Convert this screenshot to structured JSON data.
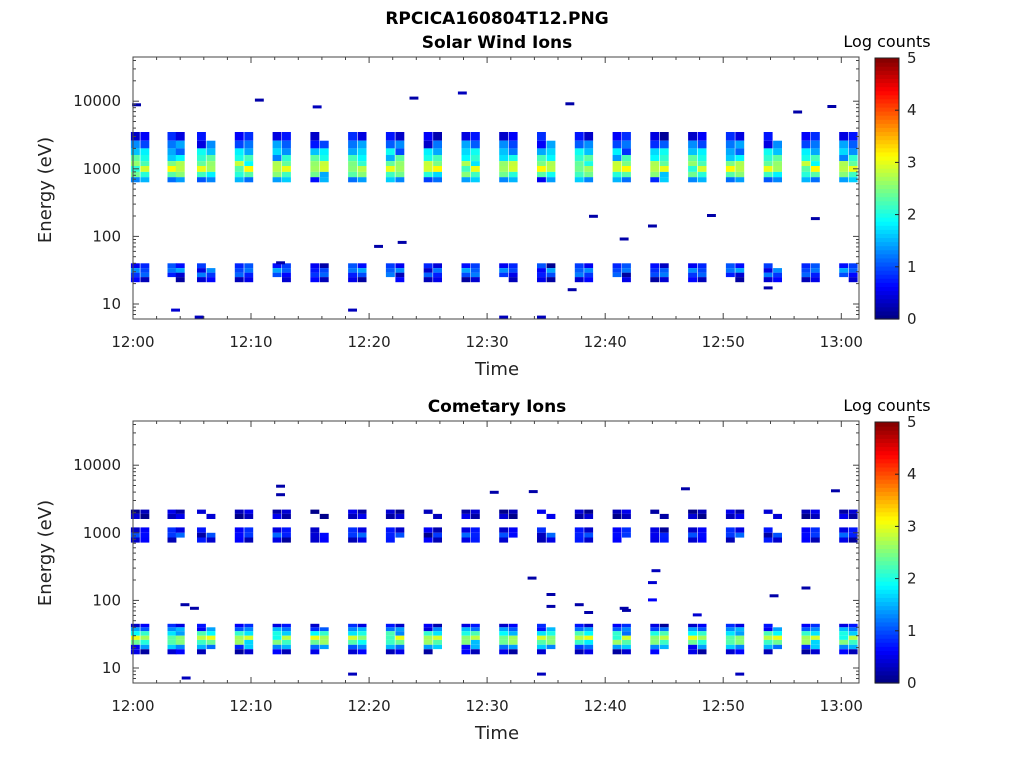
{
  "figure": {
    "title": "RPCICA160804T12.PNG"
  },
  "colormap": {
    "name": "jet",
    "stops": [
      "#00007f",
      "#0000ff",
      "#007fff",
      "#00ffff",
      "#7fff7f",
      "#ffff00",
      "#ff7f00",
      "#ff0000",
      "#7f0000"
    ]
  },
  "chart_data": [
    {
      "type": "heatmap",
      "title": "Solar Wind Ions",
      "xlabel": "Time",
      "ylabel": "Energy (eV)",
      "yscale": "log",
      "xlim_minutes": [
        0,
        61.5
      ],
      "ylim": [
        6,
        45000
      ],
      "xticks": [
        "12:00",
        "12:10",
        "12:20",
        "12:30",
        "12:40",
        "12:50",
        "13:00"
      ],
      "yticks": [
        "10",
        "100",
        "1000",
        "10000"
      ],
      "yticks_values": [
        10,
        100,
        1000,
        10000
      ],
      "colorbar": {
        "label": "Log counts",
        "min": 0,
        "max": 5,
        "ticks": [
          "0",
          "1",
          "2",
          "3",
          "4",
          "5"
        ]
      },
      "sweep_period_min": 3.2,
      "columns_min": [
        0.2,
        1.0,
        3.3,
        4.0,
        5.8,
        6.6,
        9.0,
        9.8,
        12.2,
        13.0,
        15.4,
        16.2,
        18.6,
        19.4,
        21.8,
        22.6,
        25.0,
        25.8,
        28.2,
        29.0,
        31.4,
        32.2,
        34.6,
        35.4,
        37.8,
        38.6,
        41.0,
        41.8,
        44.2,
        45.0,
        47.4,
        48.2,
        50.6,
        51.4,
        53.8,
        54.6,
        57.0,
        57.8,
        60.2,
        61.0
      ],
      "bands": [
        {
          "energy_ev": [
            3500,
            2600,
            2000,
            1600,
            1300,
            1100,
            900,
            750
          ],
          "log_counts": [
            0.6,
            1.2,
            1.7,
            2.1,
            2.6,
            2.9,
            2.3,
            1.4
          ]
        },
        {
          "energy_ev": [
            40,
            34,
            29,
            25
          ],
          "log_counts": [
            0.8,
            1.2,
            1.0,
            0.4
          ]
        }
      ],
      "sparse_points": [
        {
          "t": 0.3,
          "e": 8700,
          "v": 0.2
        },
        {
          "t": 10.7,
          "e": 10200,
          "v": 0.2
        },
        {
          "t": 15.6,
          "e": 8100,
          "v": 0.3
        },
        {
          "t": 23.8,
          "e": 10900,
          "v": 0.2
        },
        {
          "t": 27.9,
          "e": 13000,
          "v": 0.3
        },
        {
          "t": 37.0,
          "e": 9000,
          "v": 0.2
        },
        {
          "t": 56.3,
          "e": 6800,
          "v": 0.2
        },
        {
          "t": 59.2,
          "e": 8200,
          "v": 0.2
        },
        {
          "t": 3.6,
          "e": 8,
          "v": 0.4
        },
        {
          "t": 18.6,
          "e": 8,
          "v": 0.3
        },
        {
          "t": 5.6,
          "e": 6.3,
          "v": 0.3
        },
        {
          "t": 31.4,
          "e": 6.3,
          "v": 0.3
        },
        {
          "t": 34.6,
          "e": 6.3,
          "v": 0.3
        },
        {
          "t": 37.2,
          "e": 16,
          "v": 0.2
        },
        {
          "t": 53.8,
          "e": 17,
          "v": 0.2
        },
        {
          "t": 12.5,
          "e": 40,
          "v": 0.2
        },
        {
          "t": 41.6,
          "e": 90,
          "v": 0.2
        },
        {
          "t": 44.0,
          "e": 140,
          "v": 0.2
        },
        {
          "t": 49.0,
          "e": 200,
          "v": 0.2
        },
        {
          "t": 57.8,
          "e": 180,
          "v": 0.2
        },
        {
          "t": 39.0,
          "e": 195,
          "v": 0.2
        },
        {
          "t": 20.8,
          "e": 70,
          "v": 0.2
        },
        {
          "t": 22.8,
          "e": 80,
          "v": 0.2
        }
      ]
    },
    {
      "type": "heatmap",
      "title": "Cometary Ions",
      "xlabel": "Time",
      "ylabel": "Energy (eV)",
      "yscale": "log",
      "xlim_minutes": [
        0,
        61.5
      ],
      "ylim": [
        6,
        45000
      ],
      "xticks": [
        "12:00",
        "12:10",
        "12:20",
        "12:30",
        "12:40",
        "12:50",
        "13:00"
      ],
      "yticks": [
        "10",
        "100",
        "1000",
        "10000"
      ],
      "yticks_values": [
        10,
        100,
        1000,
        10000
      ],
      "colorbar": {
        "label": "Log counts",
        "min": 0,
        "max": 5,
        "ticks": [
          "0",
          "1",
          "2",
          "3",
          "4",
          "5"
        ]
      },
      "sweep_period_min": 3.2,
      "columns_min": [
        0.2,
        1.0,
        3.3,
        4.0,
        5.8,
        6.6,
        9.0,
        9.8,
        12.2,
        13.0,
        15.4,
        16.2,
        18.6,
        19.4,
        21.8,
        22.6,
        25.0,
        25.8,
        28.2,
        29.0,
        31.4,
        32.2,
        34.6,
        35.4,
        37.8,
        38.6,
        41.0,
        41.8,
        44.2,
        45.0,
        47.4,
        48.2,
        50.6,
        51.4,
        53.8,
        54.6,
        57.0,
        57.8,
        60.2,
        61.0
      ],
      "bands": [
        {
          "energy_ev": [
            2200,
            1900
          ],
          "log_counts": [
            0.3,
            0.3
          ]
        },
        {
          "energy_ev": [
            1200,
            1000,
            850
          ],
          "log_counts": [
            0.6,
            0.9,
            0.5
          ]
        },
        {
          "energy_ev": [
            45,
            40,
            35,
            30,
            26,
            22,
            19
          ],
          "log_counts": [
            0.6,
            1.3,
            2.0,
            2.8,
            2.4,
            1.4,
            0.4
          ]
        }
      ],
      "sparse_points": [
        {
          "t": 12.5,
          "e": 4800,
          "v": 0.2
        },
        {
          "t": 12.5,
          "e": 3600,
          "v": 0.2
        },
        {
          "t": 30.6,
          "e": 3900,
          "v": 0.2
        },
        {
          "t": 33.9,
          "e": 4000,
          "v": 0.2
        },
        {
          "t": 46.8,
          "e": 4400,
          "v": 0.2
        },
        {
          "t": 59.5,
          "e": 4100,
          "v": 0.2
        },
        {
          "t": 4.5,
          "e": 7,
          "v": 0.3
        },
        {
          "t": 18.6,
          "e": 8,
          "v": 0.3
        },
        {
          "t": 34.6,
          "e": 8,
          "v": 0.3
        },
        {
          "t": 51.4,
          "e": 8,
          "v": 0.3
        },
        {
          "t": 33.8,
          "e": 210,
          "v": 0.2
        },
        {
          "t": 35.4,
          "e": 120,
          "v": 0.2
        },
        {
          "t": 35.4,
          "e": 80,
          "v": 0.2
        },
        {
          "t": 37.8,
          "e": 85,
          "v": 0.2
        },
        {
          "t": 38.6,
          "e": 65,
          "v": 0.2
        },
        {
          "t": 41.6,
          "e": 75,
          "v": 0.2
        },
        {
          "t": 44.0,
          "e": 180,
          "v": 0.4
        },
        {
          "t": 44.0,
          "e": 100,
          "v": 0.6
        },
        {
          "t": 44.3,
          "e": 270,
          "v": 0.3
        },
        {
          "t": 47.8,
          "e": 60,
          "v": 0.4
        },
        {
          "t": 54.3,
          "e": 115,
          "v": 0.2
        },
        {
          "t": 57.0,
          "e": 150,
          "v": 0.2
        },
        {
          "t": 4.4,
          "e": 85,
          "v": 0.2
        },
        {
          "t": 5.2,
          "e": 75,
          "v": 0.2
        },
        {
          "t": 41.8,
          "e": 70,
          "v": 0.2
        }
      ]
    }
  ]
}
